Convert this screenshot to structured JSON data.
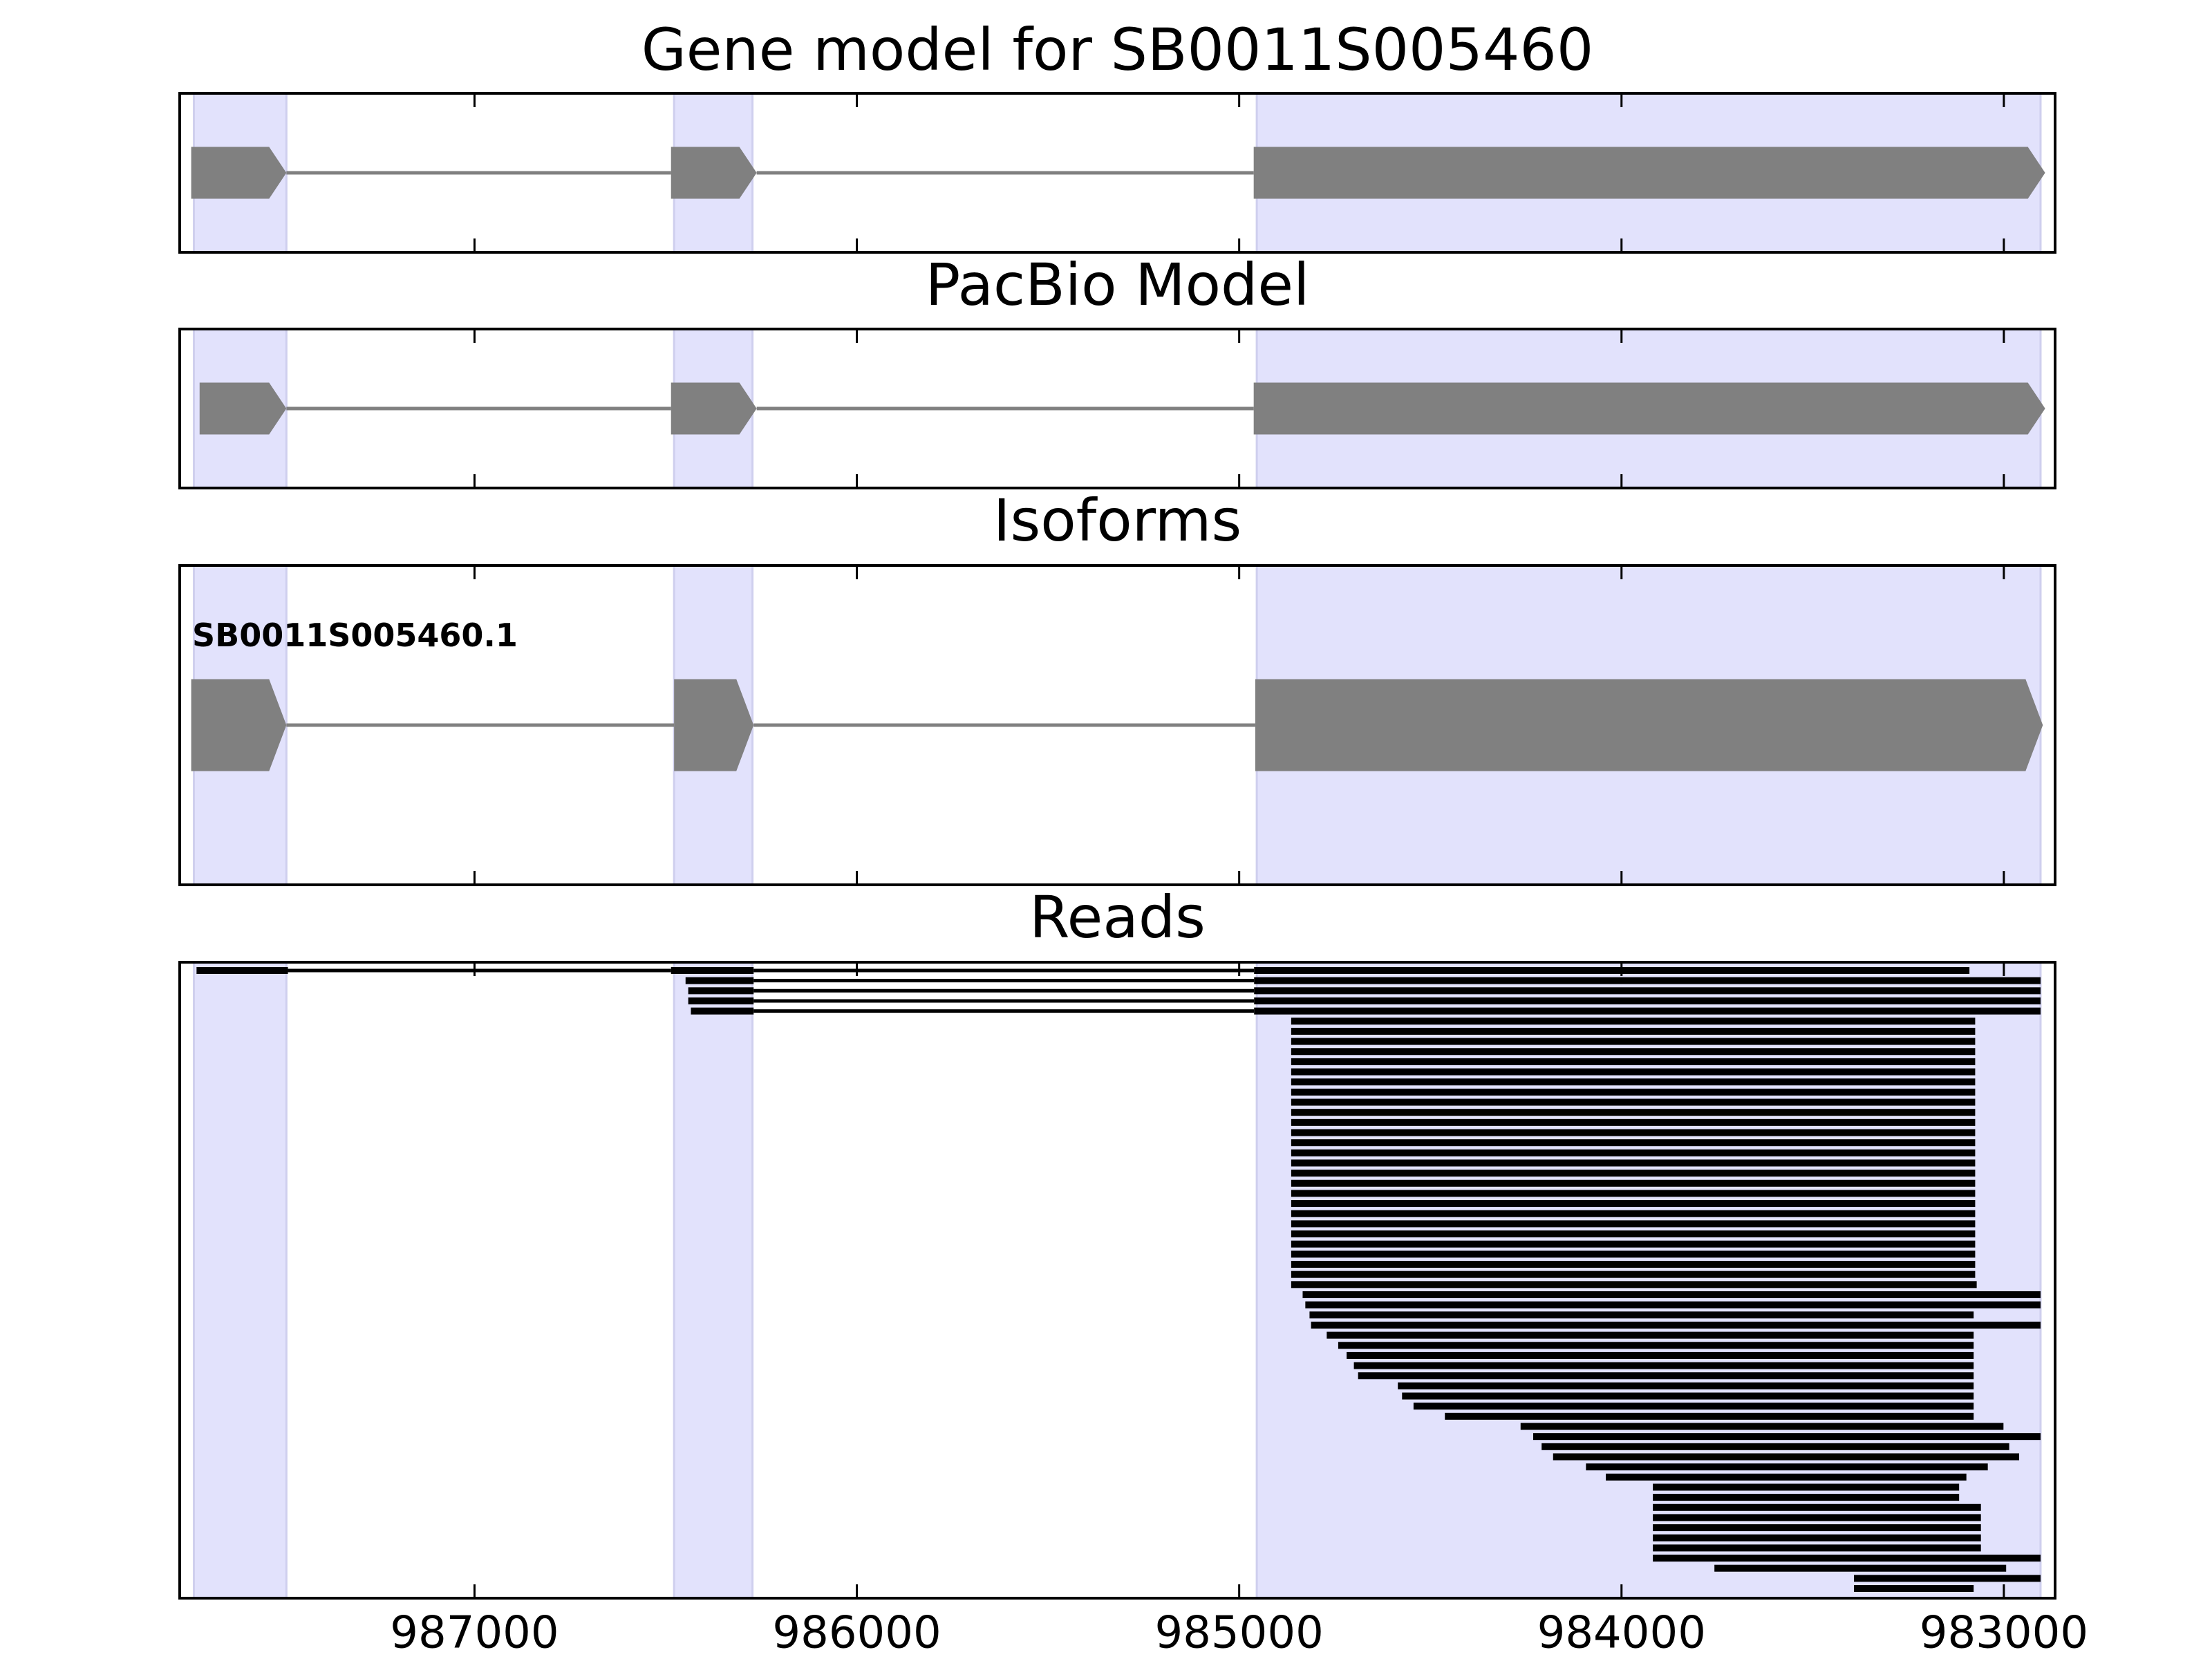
{
  "chart_data": {
    "type": "genome",
    "xlim": [
      987771,
      982866
    ],
    "xticks": [
      987000,
      986000,
      985000,
      984000,
      983000
    ],
    "shade_color": "#e2e2fc",
    "regions": [
      [
        987734,
        987492
      ],
      [
        986478,
        986273
      ],
      [
        984954,
        982904
      ]
    ],
    "panels": [
      {
        "title": "Gene model for SB0011S005460",
        "kind": "model",
        "color": "#808080",
        "features": [
          [
            987741,
            987492
          ],
          [
            986486,
            986262
          ],
          [
            984962,
            982892
          ]
        ]
      },
      {
        "title": "PacBio Model",
        "kind": "model",
        "color": "#808080",
        "features": [
          [
            987719,
            987492
          ],
          [
            986486,
            986262
          ],
          [
            984962,
            982892
          ]
        ]
      },
      {
        "title": "Isoforms",
        "kind": "isoform",
        "color": "#808080",
        "label": "SB0011S005460.1",
        "features": [
          [
            987741,
            987492
          ],
          [
            986478,
            986270
          ],
          [
            984958,
            982898
          ]
        ]
      },
      {
        "title": "Reads",
        "kind": "reads",
        "color": "#000000",
        "reads": [
          [
            [
              987727,
              987488
            ],
            [
              986486,
              986270
            ],
            [
              984961,
              983090
            ]
          ],
          [
            [
              986448,
              986270
            ],
            [
              984961,
              982904
            ]
          ],
          [
            [
              986441,
              986270
            ],
            [
              984961,
              982904
            ]
          ],
          [
            [
              986441,
              986270
            ],
            [
              984961,
              982904
            ]
          ],
          [
            [
              986434,
              986270
            ],
            [
              984961,
              982904
            ]
          ],
          [
            [
              984864,
              983075
            ]
          ],
          [
            [
              984864,
              983075
            ]
          ],
          [
            [
              984864,
              983075
            ]
          ],
          [
            [
              984864,
              983075
            ]
          ],
          [
            [
              984864,
              983075
            ]
          ],
          [
            [
              984864,
              983075
            ]
          ],
          [
            [
              984864,
              983075
            ]
          ],
          [
            [
              984864,
              983075
            ]
          ],
          [
            [
              984864,
              983075
            ]
          ],
          [
            [
              984864,
              983075
            ]
          ],
          [
            [
              984864,
              983075
            ]
          ],
          [
            [
              984864,
              983075
            ]
          ],
          [
            [
              984864,
              983075
            ]
          ],
          [
            [
              984864,
              983075
            ]
          ],
          [
            [
              984864,
              983075
            ]
          ],
          [
            [
              984864,
              983075
            ]
          ],
          [
            [
              984864,
              983075
            ]
          ],
          [
            [
              984864,
              983075
            ]
          ],
          [
            [
              984864,
              983075
            ]
          ],
          [
            [
              984864,
              983075
            ]
          ],
          [
            [
              984864,
              983075
            ]
          ],
          [
            [
              984864,
              983075
            ]
          ],
          [
            [
              984864,
              983075
            ]
          ],
          [
            [
              984864,
              983075
            ]
          ],
          [
            [
              984864,
              983075
            ]
          ],
          [
            [
              984864,
              983075
            ]
          ],
          [
            [
              984864,
              983071
            ]
          ],
          [
            [
              984834,
              982904
            ]
          ],
          [
            [
              984827,
              982904
            ]
          ],
          [
            [
              984816,
              983079
            ]
          ],
          [
            [
              984812,
              982904
            ]
          ],
          [
            [
              984771,
              983079
            ]
          ],
          [
            [
              984741,
              983079
            ]
          ],
          [
            [
              984719,
              983079
            ]
          ],
          [
            [
              984700,
              983079
            ]
          ],
          [
            [
              984689,
              983079
            ]
          ],
          [
            [
              984585,
              983079
            ]
          ],
          [
            [
              984574,
              983079
            ]
          ],
          [
            [
              984544,
              983079
            ]
          ],
          [
            [
              984462,
              983079
            ]
          ],
          [
            [
              984264,
              983001
            ]
          ],
          [
            [
              984231,
              982904
            ]
          ],
          [
            [
              984209,
              982986
            ]
          ],
          [
            [
              984179,
              982960
            ]
          ],
          [
            [
              984093,
              983042
            ]
          ],
          [
            [
              984041,
              983098
            ]
          ],
          [
            [
              983918,
              983117
            ]
          ],
          [
            [
              983918,
              983117
            ]
          ],
          [
            [
              983918,
              983060
            ]
          ],
          [
            [
              983918,
              983060
            ]
          ],
          [
            [
              983918,
              983060
            ]
          ],
          [
            [
              983918,
              983060
            ]
          ],
          [
            [
              983918,
              983060
            ]
          ],
          [
            [
              983918,
              982904
            ]
          ],
          [
            [
              983757,
              982994
            ]
          ],
          [
            [
              983392,
              982904
            ]
          ],
          [
            [
              983392,
              983079
            ]
          ]
        ]
      }
    ]
  }
}
